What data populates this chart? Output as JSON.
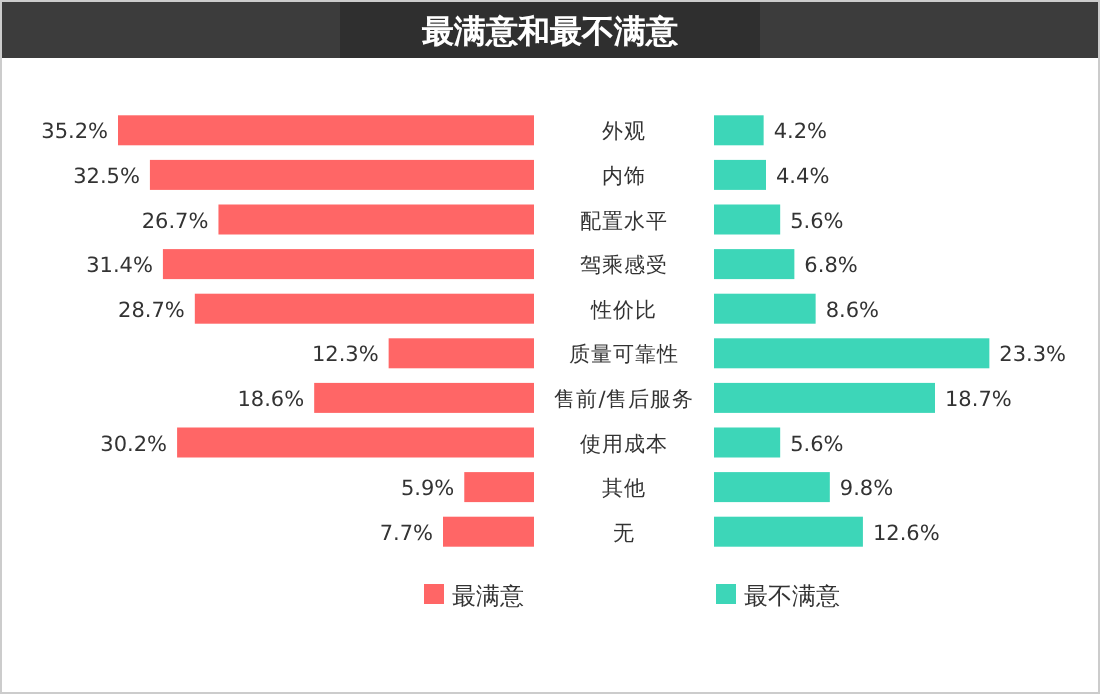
{
  "chart_data": [
    {
      "type": "bar",
      "orientation": "horizontal",
      "title": "最满意和最不满意",
      "categories": [
        "外观",
        "内饰",
        "配置水平",
        "驾乘感受",
        "性价比",
        "质量可靠性",
        "售前/售后服务",
        "使用成本",
        "其他",
        "无"
      ],
      "series": [
        {
          "name": "最满意",
          "color": "#ff6666",
          "values": [
            35.2,
            32.5,
            26.7,
            31.4,
            28.7,
            12.3,
            18.6,
            30.2,
            5.9,
            7.7
          ],
          "value_labels": [
            "35.2%",
            "32.5%",
            "26.7%",
            "31.4%",
            "28.7%",
            "12.3%",
            "18.6%",
            "30.2%",
            "5.9%",
            "7.7%"
          ]
        }
      ],
      "legend": "bottom"
    },
    {
      "type": "bar",
      "orientation": "horizontal",
      "categories": [
        null,
        null,
        null,
        null,
        null,
        null,
        null,
        null,
        null,
        null
      ],
      "series": [
        {
          "name": "最不满意",
          "color": "#3dd6b8",
          "values": [
            4.2,
            4.4,
            5.6,
            6.8,
            8.6,
            23.3,
            18.7,
            5.6,
            9.8,
            12.6
          ],
          "value_labels": [
            "4.2%",
            "4.4%",
            "5.6%",
            "6.8%",
            "8.6%",
            "23.3%",
            "18.7%",
            "5.6%",
            "9.8%",
            "12.6%"
          ]
        }
      ],
      "legend": "bottom"
    }
  ]
}
